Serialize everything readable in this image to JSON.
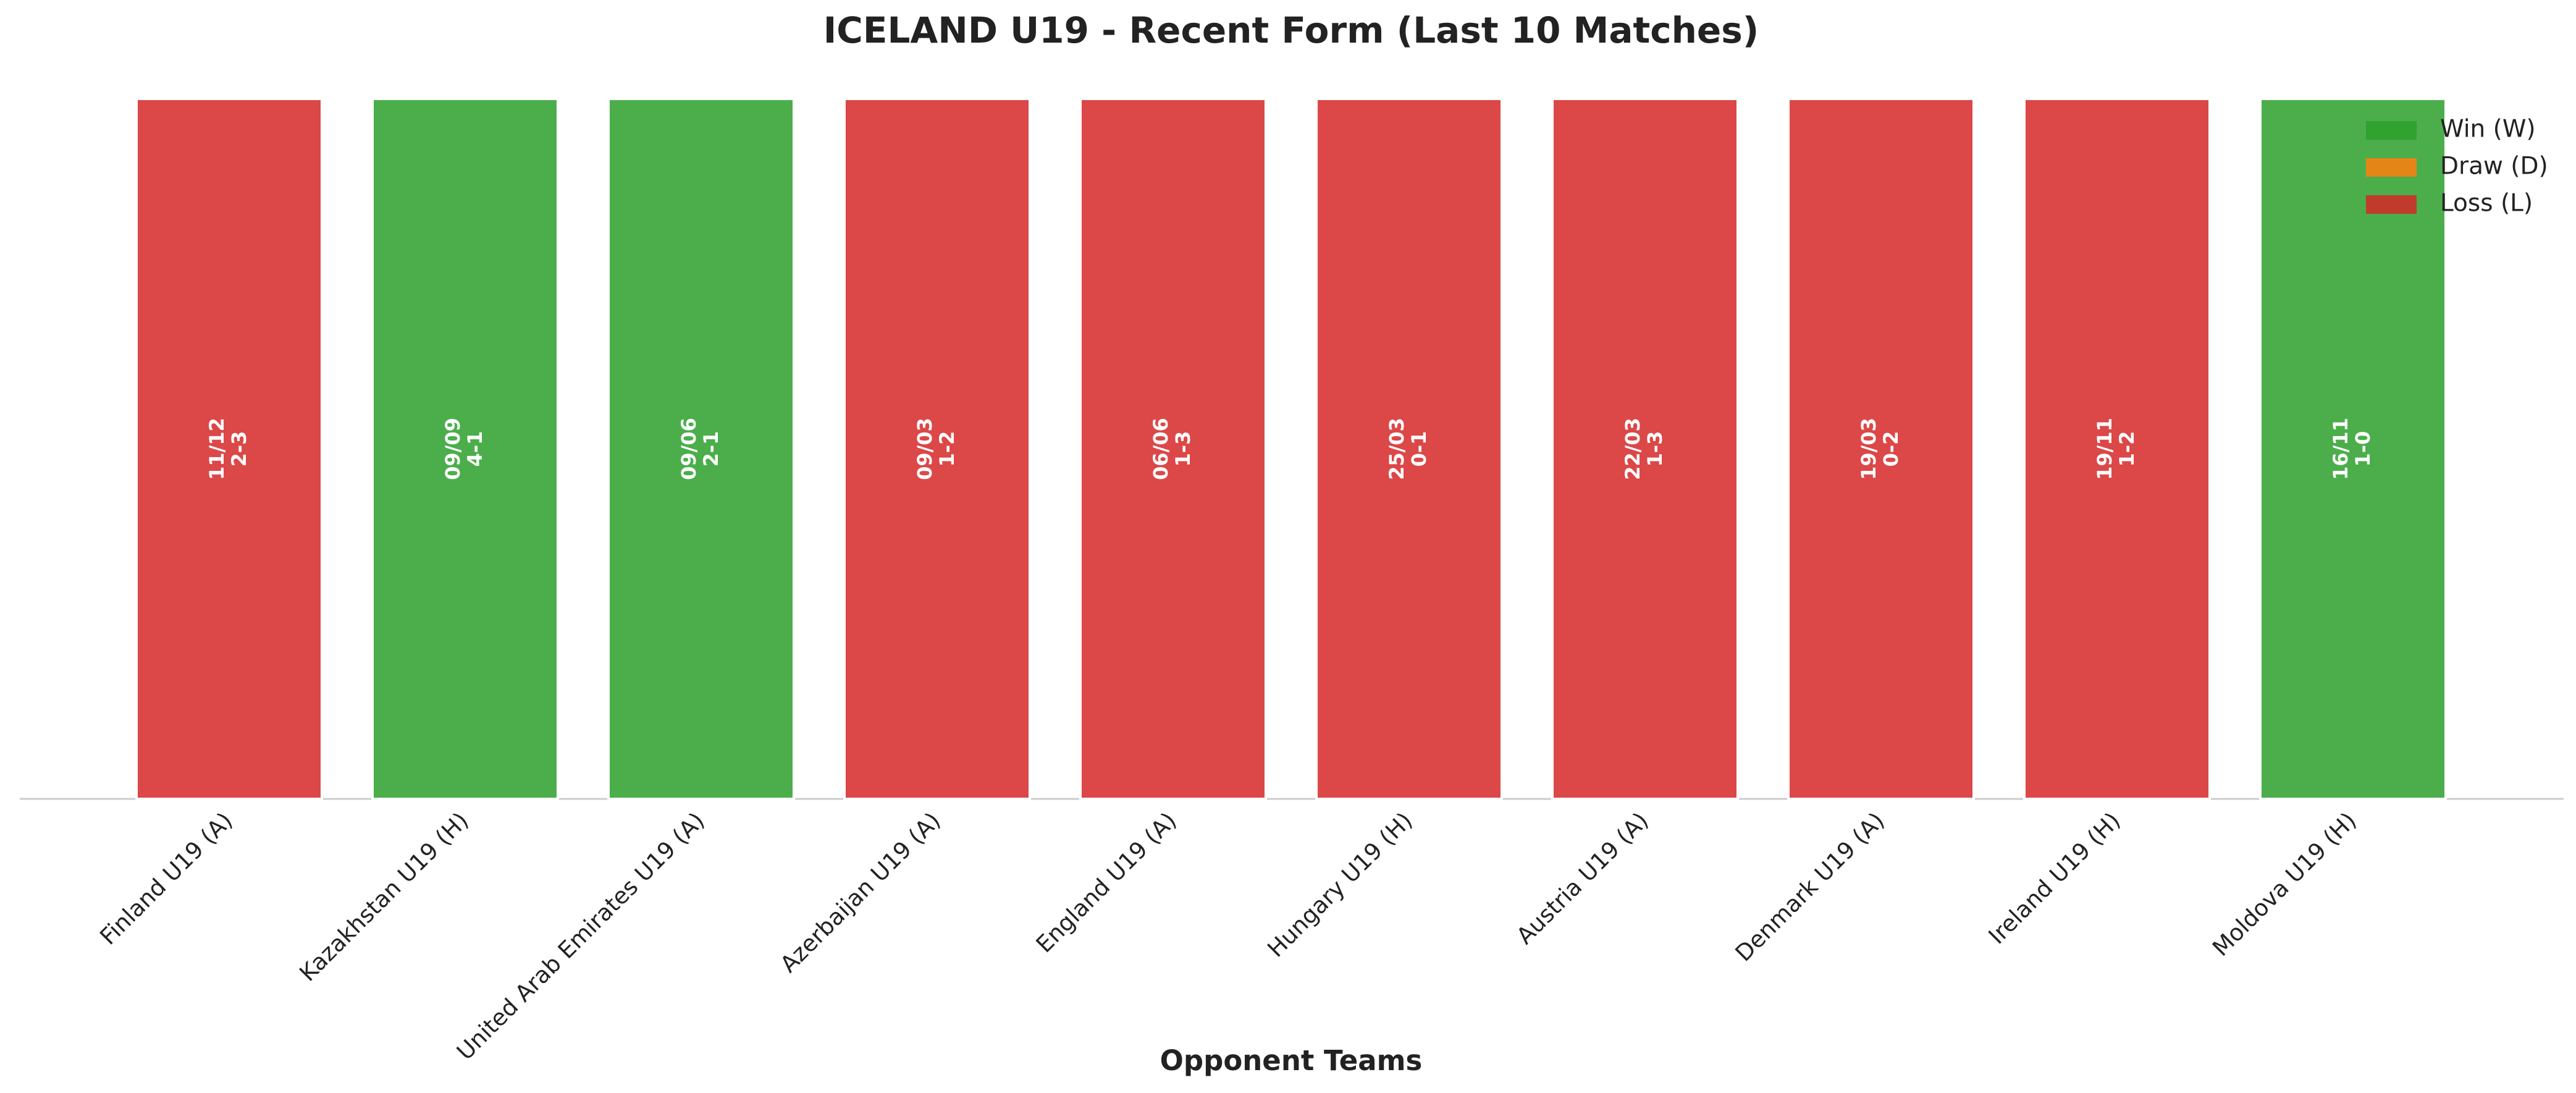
{
  "chart_data": {
    "type": "bar",
    "title": "ICELAND U19 - Recent Form (Last 10 Matches)",
    "x_label": "Opponent Teams",
    "categories": [
      "Finland U19 (A)",
      "Kazakhstan U19 (H)",
      "United Arab Emirates U19 (A)",
      "Azerbaijan U19 (A)",
      "England U19 (A)",
      "Hungary U19 (H)",
      "Austria U19 (A)",
      "Denmark U19 (A)",
      "Ireland U19 (H)",
      "Moldova U19 (H)"
    ],
    "values": [
      1,
      1,
      1,
      1,
      1,
      1,
      1,
      1,
      1,
      1
    ],
    "colors": [
      "#d62728",
      "#2ca02c",
      "#2ca02c",
      "#d62728",
      "#d62728",
      "#d62728",
      "#d62728",
      "#d62728",
      "#d62728",
      "#2ca02c"
    ],
    "bar_labels": [
      {
        "date": "11/12",
        "score": "2-3"
      },
      {
        "date": "09/09",
        "score": "4-1"
      },
      {
        "date": "09/06",
        "score": "2-1"
      },
      {
        "date": "09/03",
        "score": "1-2"
      },
      {
        "date": "06/06",
        "score": "1-3"
      },
      {
        "date": "25/03",
        "score": "0-1"
      },
      {
        "date": "22/03",
        "score": "1-3"
      },
      {
        "date": "19/03",
        "score": "0-2"
      },
      {
        "date": "19/11",
        "score": "1-2"
      },
      {
        "date": "16/11",
        "score": "1-0"
      }
    ],
    "ylim": [
      0,
      1
    ],
    "legend_position": "upper right",
    "legend": [
      {
        "name": "Win (W)",
        "color": "#2ca02c"
      },
      {
        "name": "Draw (D)",
        "color": "#ff7f0e"
      },
      {
        "name": "Loss (L)",
        "color": "#d62728"
      }
    ]
  }
}
